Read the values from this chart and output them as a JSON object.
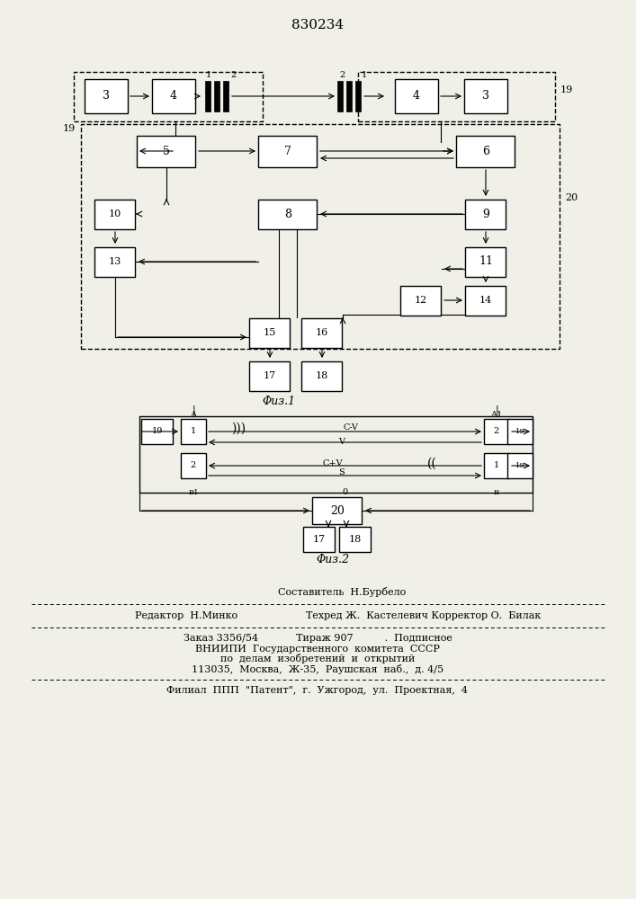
{
  "title": "830234",
  "fig1_label": "Φиз.1",
  "fig2_label": "Φиз.2",
  "footer": {
    "line1": "Составитель  Н.Бурбело",
    "line2_left": "Редактор  Н.Минко",
    "line2_right": "Техред Ж.  Кастелевич Корректор О.  Билак",
    "line3": "Заказ 3356/54            Тираж 907          .  Подписное",
    "line4": "ВНИИПИ  Государственного  комитета  СССР",
    "line5": "по  делам  изобретений  и  открытий",
    "line6": "113035,  Москва,  Ж-35,  Раушская  наб.,  д. 4/5",
    "line7": "Филиал  ППП  \"Патент\",  г.  Ужгород,  ул.  Проектная,  4"
  },
  "bg_color": "#f0efe8"
}
